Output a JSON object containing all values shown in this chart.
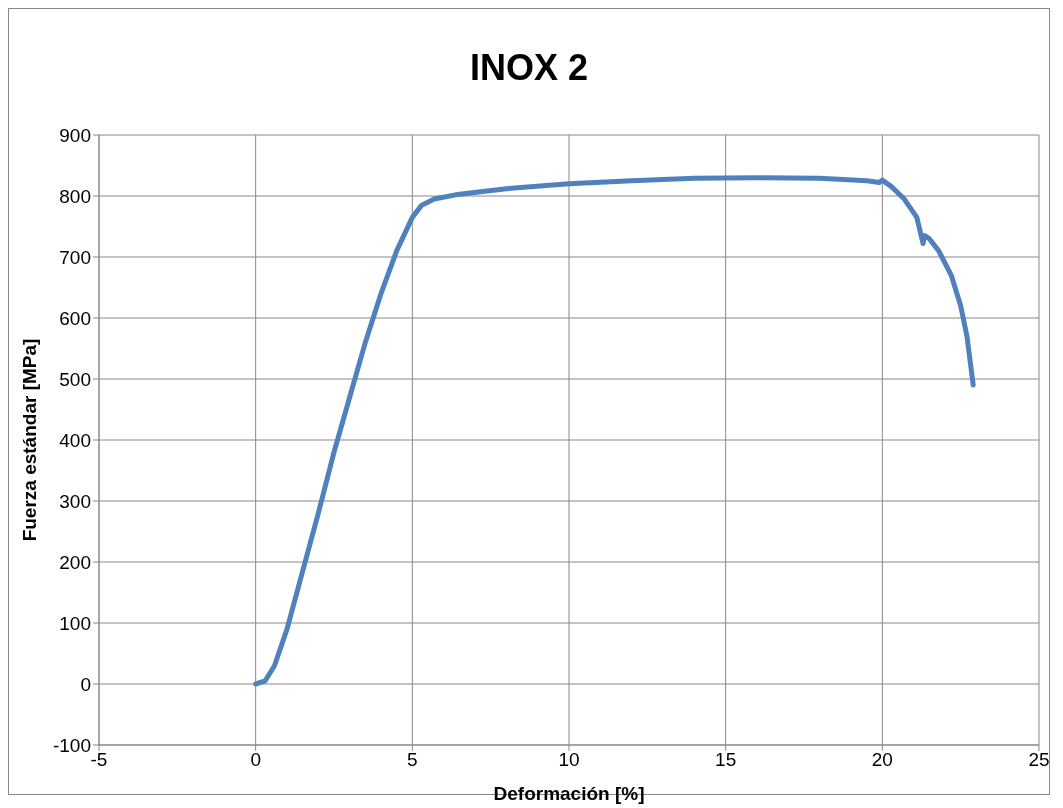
{
  "chart_data": {
    "type": "line",
    "title": "INOX 2",
    "xlabel": "Deformación [%]",
    "ylabel": "Fuerza estándar [MPa]",
    "x": [
      0,
      0.3,
      0.6,
      1,
      1.5,
      2,
      2.5,
      3,
      3.5,
      4,
      4.5,
      5,
      5.3,
      5.7,
      6.5,
      8,
      10,
      12,
      14,
      16,
      18,
      19.5,
      19.9,
      20,
      20.3,
      20.7,
      21.1,
      21.3,
      21.35,
      21.5,
      21.8,
      22.2,
      22.5,
      22.7,
      22.9
    ],
    "series": [
      {
        "color": "#4f81bd",
        "values": [
          0,
          5,
          30,
          90,
          185,
          280,
          380,
          470,
          560,
          640,
          710,
          765,
          785,
          795,
          803,
          812,
          820,
          825,
          829,
          830,
          829,
          825,
          822,
          826,
          815,
          795,
          765,
          722,
          735,
          730,
          710,
          670,
          620,
          570,
          490
        ]
      }
    ],
    "xlim": [
      -5,
      25
    ],
    "xticks": [
      -5,
      0,
      5,
      10,
      15,
      20,
      25
    ],
    "ylim": [
      -100,
      900
    ],
    "yticks": [
      -100,
      0,
      100,
      200,
      300,
      400,
      500,
      600,
      700,
      800,
      900
    ],
    "grid": true,
    "legend": false,
    "marker": "none",
    "line_style": "solid"
  }
}
